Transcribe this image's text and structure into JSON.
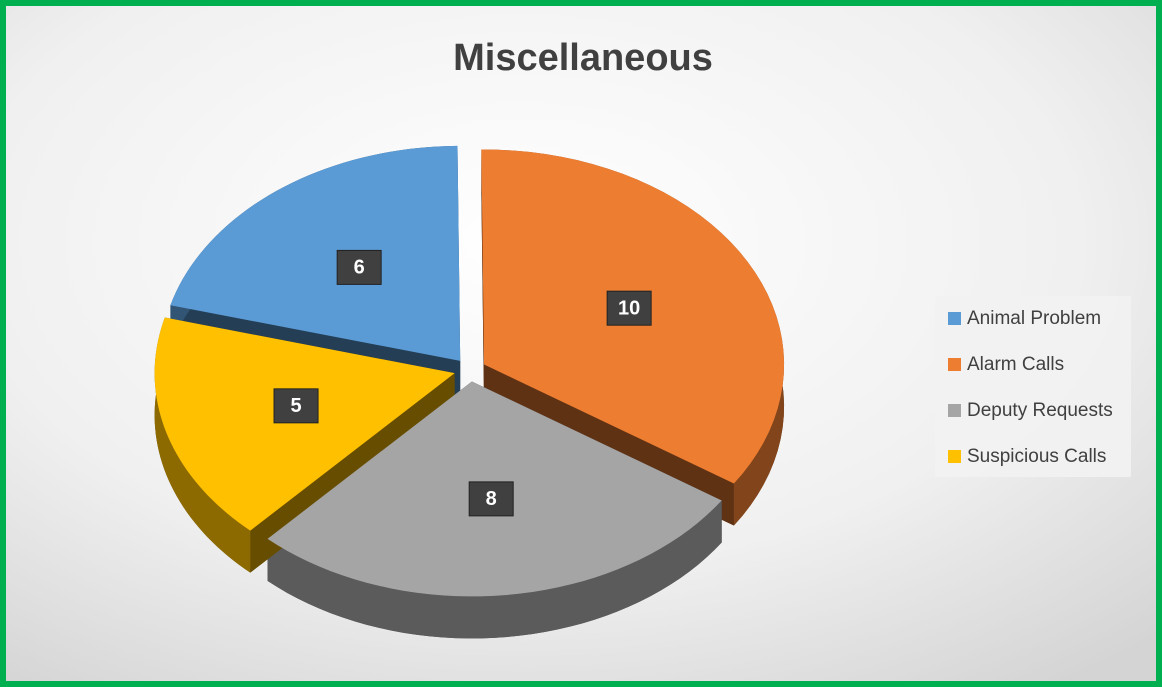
{
  "chart_data": {
    "type": "pie",
    "title": "Miscellaneous",
    "categories": [
      "Animal Problem",
      "Alarm Calls",
      "Deputy Requests",
      "Suspicious Calls"
    ],
    "values": [
      6,
      10,
      8,
      5
    ],
    "colors": [
      "#5b9bd5",
      "#ed7d31",
      "#a5a5a5",
      "#ffc000"
    ],
    "legend": "right"
  }
}
